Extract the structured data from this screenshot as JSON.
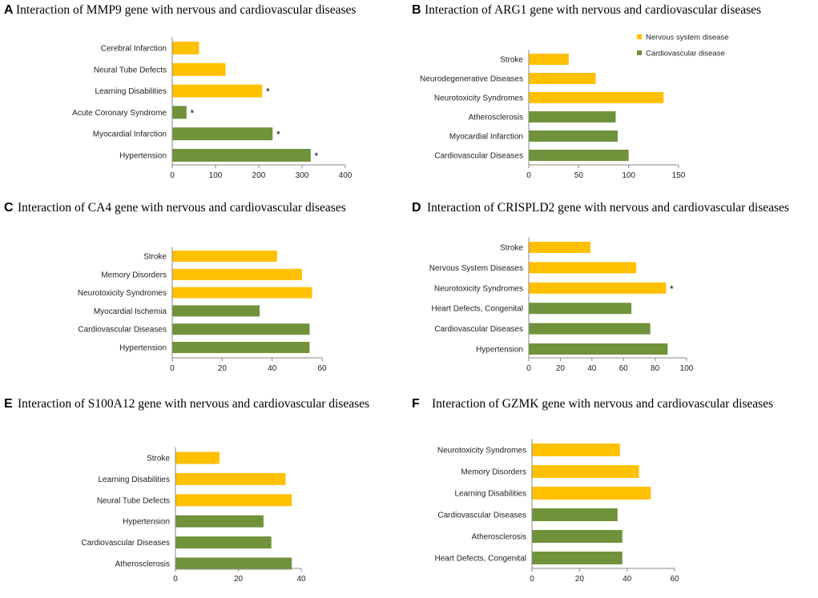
{
  "colors": {
    "nervous": "#FFC000",
    "cardio": "#70923A",
    "axis": "#888888",
    "text": "#222222"
  },
  "legend": {
    "items": [
      {
        "label": "Nervous system disease",
        "group": "nervous"
      },
      {
        "label": "Cardiovascular disease",
        "group": "cardio"
      }
    ]
  },
  "chart_data": [
    {
      "type": "bar",
      "orientation": "horizontal",
      "letter": "A",
      "title": "Interaction of MMP9 gene with nervous and cardiovascular diseases",
      "categories": [
        "Cerebral Infarction",
        "Neural Tube Defects",
        "Learning Disabilities",
        "Acute Coronary Syndrome",
        "Myocardial Infarction",
        "Hypertension"
      ],
      "values": [
        62,
        123,
        208,
        33,
        232,
        320
      ],
      "groups": [
        "nervous",
        "nervous",
        "nervous",
        "cardio",
        "cardio",
        "cardio"
      ],
      "significant": [
        false,
        false,
        true,
        true,
        true,
        true
      ],
      "marker": "*",
      "xlim": [
        0,
        400
      ],
      "ticks": [
        0,
        100,
        200,
        300,
        400
      ]
    },
    {
      "type": "bar",
      "orientation": "horizontal",
      "letter": "B",
      "title": "Interaction of ARG1 gene with nervous and cardiovascular diseases",
      "categories": [
        "Stroke",
        "Neurodegenerative Diseases",
        "Neurotoxicity Syndromes",
        "Atherosclerosis",
        "Myocardial Infarction",
        "Cardiovascular Diseases"
      ],
      "values": [
        40,
        67,
        135,
        87,
        89,
        100
      ],
      "groups": [
        "nervous",
        "nervous",
        "nervous",
        "cardio",
        "cardio",
        "cardio"
      ],
      "significant": [
        false,
        false,
        false,
        false,
        false,
        false
      ],
      "marker": "*",
      "xlim": [
        0,
        150
      ],
      "ticks": [
        0,
        50,
        100,
        150
      ]
    },
    {
      "type": "bar",
      "orientation": "horizontal",
      "letter": "C",
      "title": "Interaction of CA4 gene with nervous and cardiovascular diseases",
      "categories": [
        "Stroke",
        "Memory Disorders",
        "Neurotoxicity Syndromes",
        "Myocardial Ischemia",
        "Cardiovascular Diseases",
        "Hypertension"
      ],
      "values": [
        42,
        52,
        56,
        35,
        55,
        55
      ],
      "groups": [
        "nervous",
        "nervous",
        "nervous",
        "cardio",
        "cardio",
        "cardio"
      ],
      "significant": [
        false,
        false,
        false,
        false,
        false,
        false
      ],
      "marker": "*",
      "xlim": [
        0,
        60
      ],
      "ticks": [
        0,
        20,
        40,
        60
      ]
    },
    {
      "type": "bar",
      "orientation": "horizontal",
      "letter": "D",
      "title": "Interaction of CRISPLD2 gene with nervous and cardiovascular diseases",
      "categories": [
        "Stroke",
        "Nervous System Diseases",
        "Neurotoxicity Syndromes",
        "Heart Defects, Congenital",
        "Cardiovascular Diseases",
        "Hypertension"
      ],
      "values": [
        39,
        68,
        87,
        65,
        77,
        88
      ],
      "groups": [
        "nervous",
        "nervous",
        "nervous",
        "cardio",
        "cardio",
        "cardio"
      ],
      "significant": [
        false,
        false,
        true,
        false,
        false,
        false
      ],
      "marker": "*",
      "xlim": [
        0,
        100
      ],
      "ticks": [
        0,
        20,
        40,
        60,
        80,
        100
      ]
    },
    {
      "type": "bar",
      "orientation": "horizontal",
      "letter": "E",
      "title": "Interaction of S100A12 gene with nervous and cardiovascular diseases",
      "categories": [
        "Stroke",
        "Learning Disabilities",
        "Neural Tube Defects",
        "Hypertension",
        "Cardiovascular Diseases",
        "Atherosclerosis"
      ],
      "values": [
        14,
        35,
        37,
        28,
        30.5,
        37
      ],
      "groups": [
        "nervous",
        "nervous",
        "nervous",
        "cardio",
        "cardio",
        "cardio"
      ],
      "significant": [
        false,
        false,
        false,
        false,
        false,
        false
      ],
      "marker": "*",
      "xlim": [
        0,
        40
      ],
      "ticks": [
        0,
        20,
        40
      ]
    },
    {
      "type": "bar",
      "orientation": "horizontal",
      "letter": "F",
      "title": "Interaction of GZMK gene with nervous and cardiovascular diseases",
      "categories": [
        "Neurotoxicity Syndromes",
        "Memory Disorders",
        "Learning Disabilities",
        "Cardiovascular Diseases",
        "Atherosclerosis",
        "Heart Defects, Congenital"
      ],
      "values": [
        37,
        45,
        50,
        36,
        38,
        38
      ],
      "groups": [
        "nervous",
        "nervous",
        "nervous",
        "cardio",
        "cardio",
        "cardio"
      ],
      "significant": [
        false,
        false,
        false,
        false,
        false,
        false
      ],
      "marker": "*",
      "xlim": [
        0,
        60
      ],
      "ticks": [
        0,
        20,
        40,
        60
      ]
    }
  ]
}
